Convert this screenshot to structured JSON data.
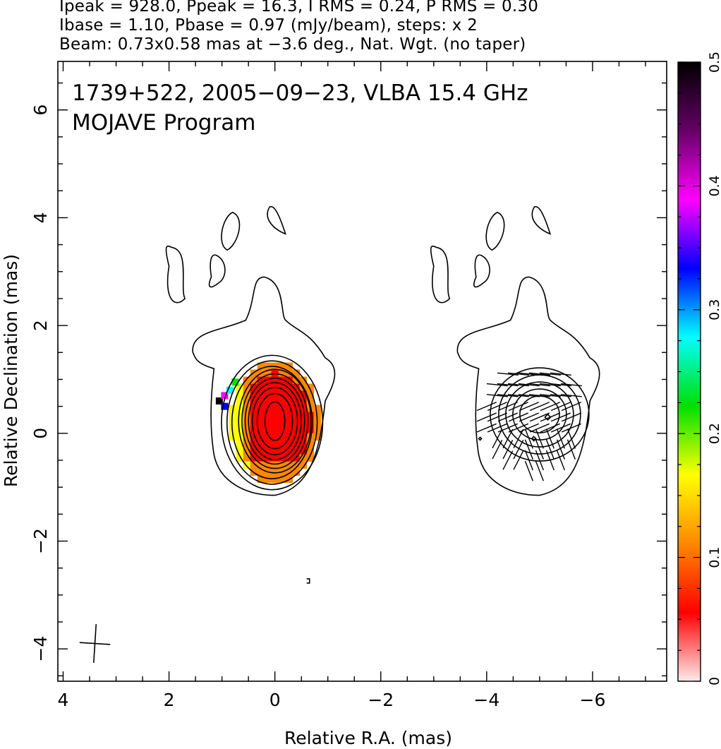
{
  "header": {
    "line1": "Ipeak = 928.0, Ppeak = 16.3, I RMS = 0.24, P RMS = 0.30",
    "line2": "Ibase = 1.10, Pbase = 0.97 (mJy/beam), steps: x 2",
    "line3": "Beam: 0.73x0.58 mas at −3.6 deg., Nat. Wgt. (no taper)"
  },
  "title": {
    "line1": "1739+522, 2005−09−23, VLBA 15.4 GHz",
    "line2": "MOJAVE Program"
  },
  "chart_data": {
    "type": "heatmap",
    "xlabel": "Relative R.A. (mas)",
    "ylabel": "Relative Declination (mas)",
    "xlim": [
      4.1,
      -7.4
    ],
    "ylim": [
      -4.6,
      6.9
    ],
    "x_ticks": [
      4,
      2,
      0,
      -2,
      -4,
      -6
    ],
    "x_tick_labels": [
      "4",
      "2",
      "0",
      "−2",
      "−4",
      "−6"
    ],
    "y_ticks": [
      -4,
      -2,
      0,
      2,
      4,
      6
    ],
    "y_tick_labels": [
      "−4",
      "−2",
      "0",
      "2",
      "4",
      "6"
    ],
    "grid": false,
    "colorbar": {
      "min": 0,
      "max": 0.5,
      "ticks": [
        0,
        0.1,
        0.2,
        0.3,
        0.4,
        0.5
      ],
      "tick_labels": [
        "0",
        "0.1",
        "0.2",
        "0.3",
        "0.4",
        "0.5"
      ],
      "colors": [
        "#fdeaea",
        "#ff0000",
        "#ff8800",
        "#ffff00",
        "#00e000",
        "#00ffff",
        "#0000ff",
        "#ff00ff",
        "#660066",
        "#000000"
      ]
    },
    "intensity_peak_position": [
      0.0,
      0.2
    ],
    "contour_levels_mJy_per_beam": [
      1.1,
      2.2,
      4.4,
      8.8,
      17.6,
      35.2,
      70.4,
      140.8,
      281.6,
      563.2
    ],
    "beam": {
      "major_mas": 0.73,
      "minor_mas": 0.58,
      "pa_deg": -3.6,
      "center": [
        3.4,
        -3.9
      ]
    },
    "right_panel_offset_mas": -5.0
  }
}
